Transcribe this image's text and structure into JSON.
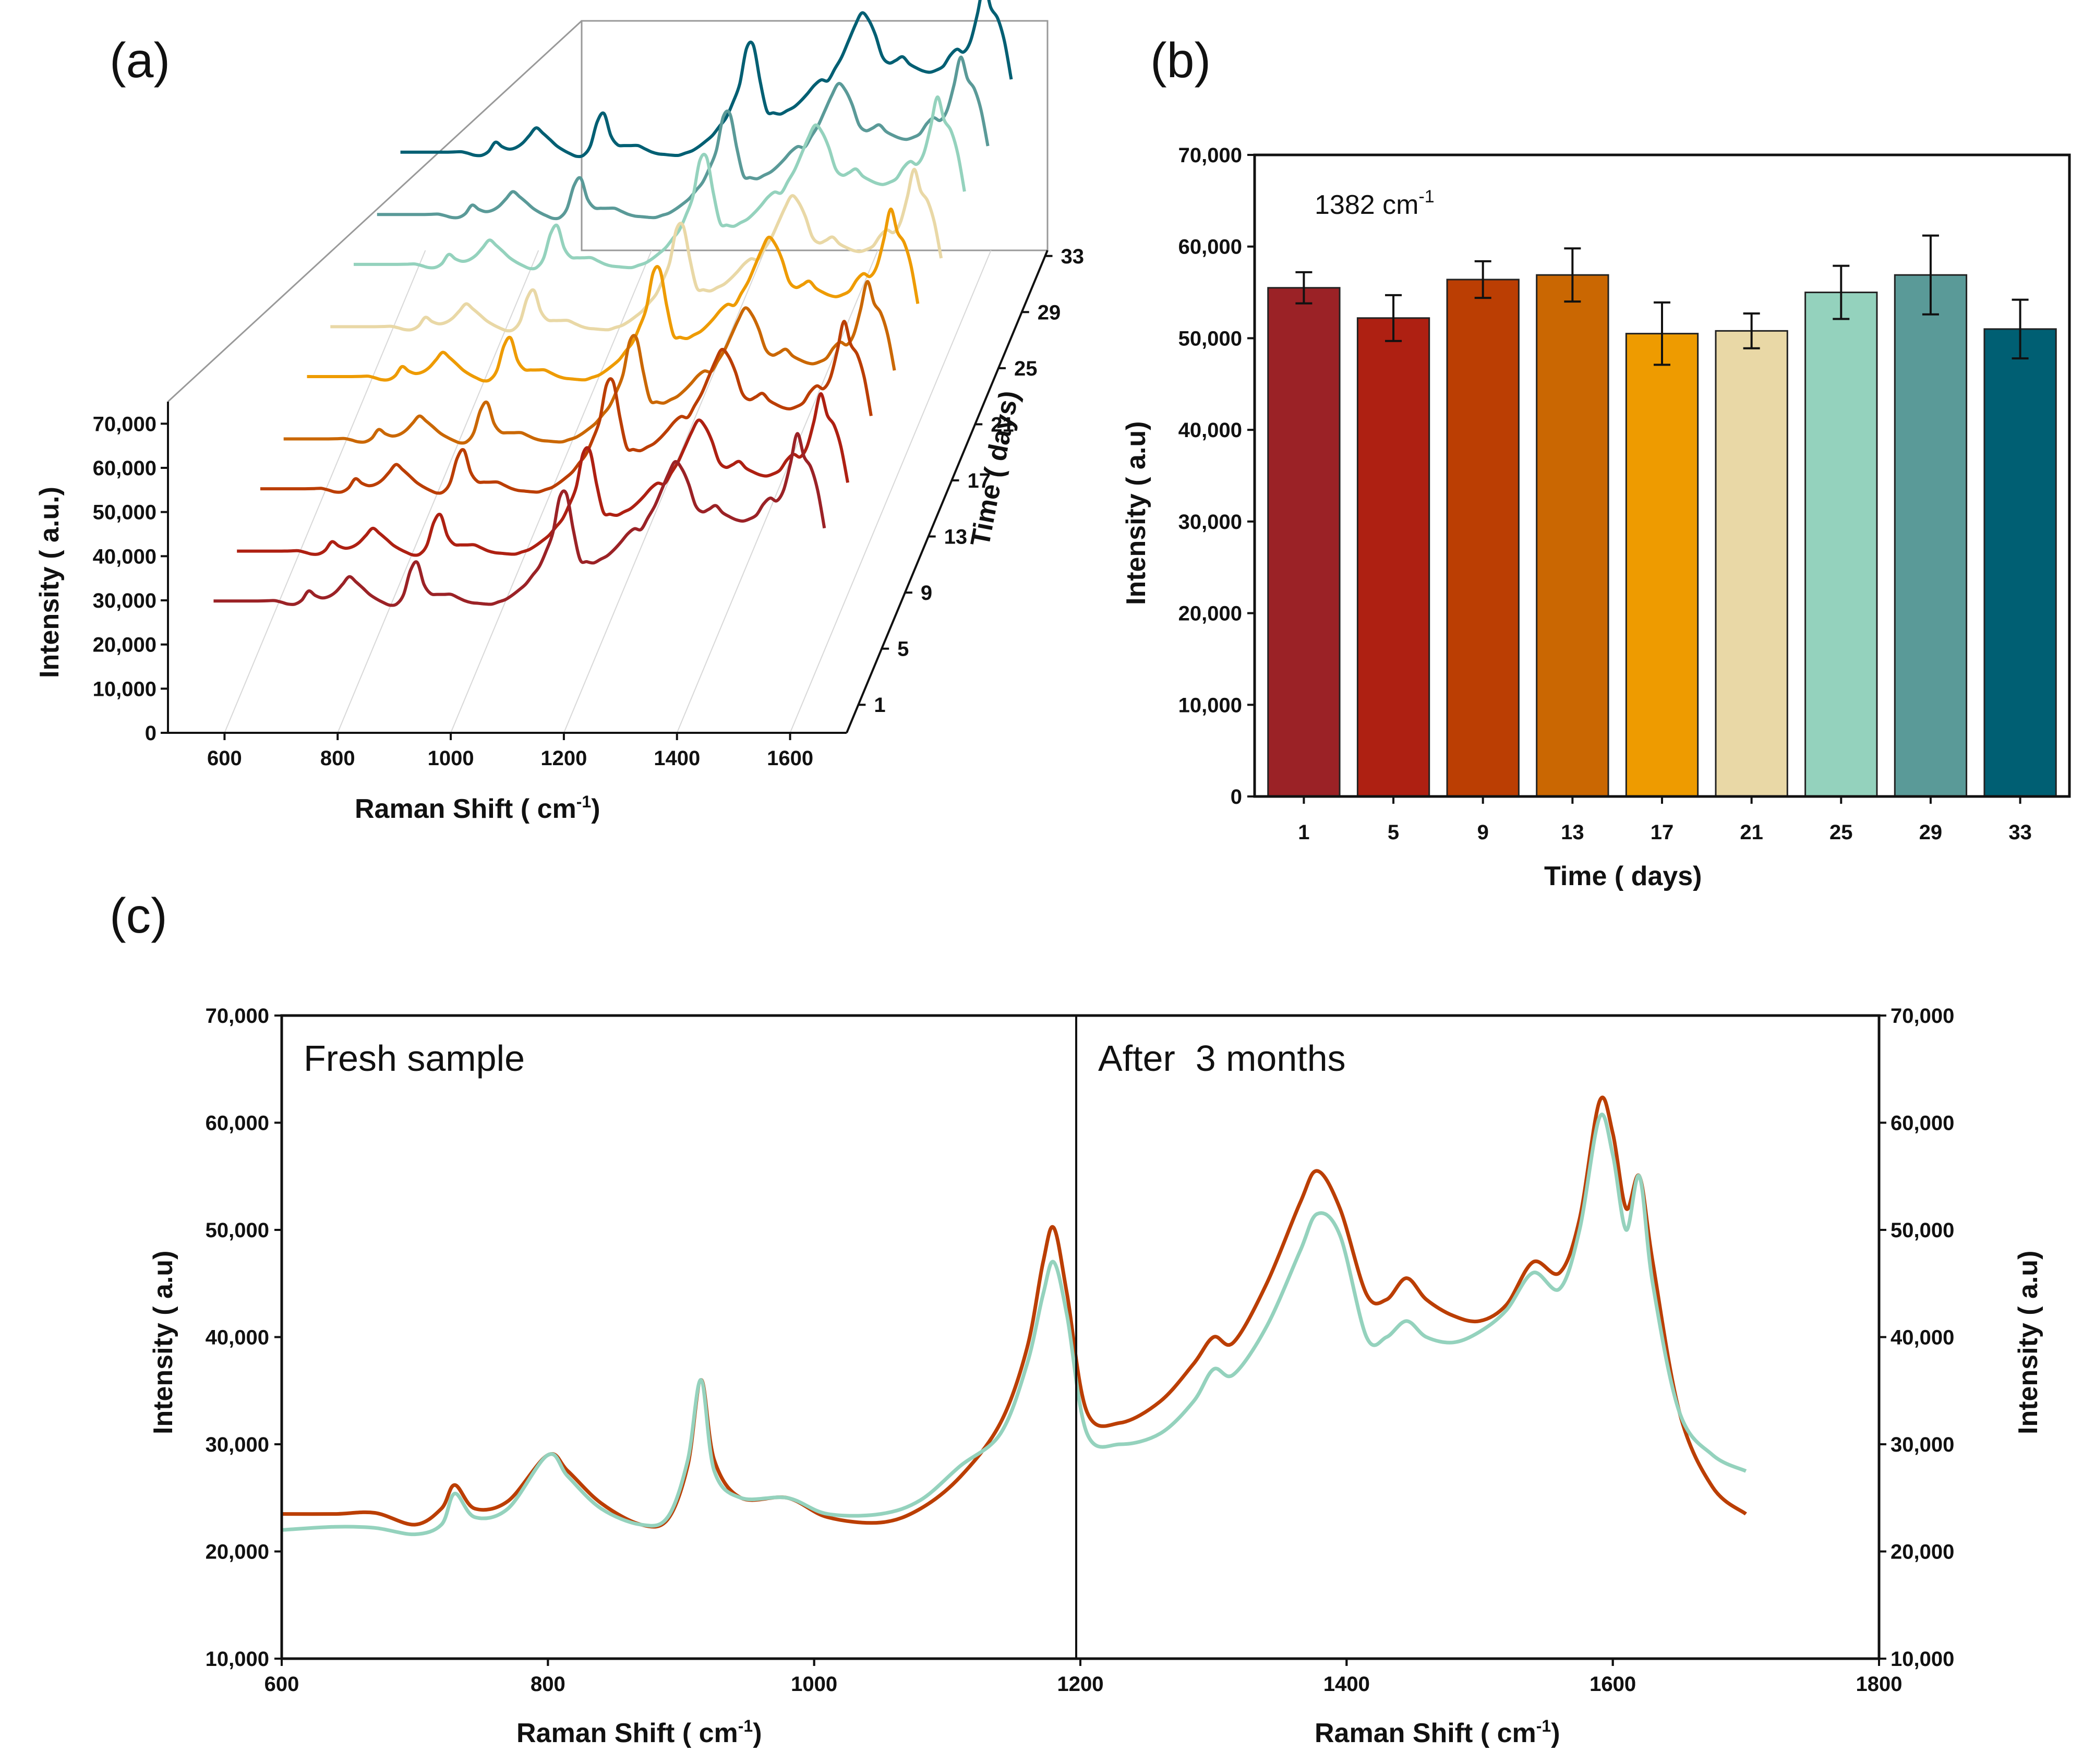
{
  "panels": {
    "a": "(a)",
    "b": "(b)",
    "c": "(c)"
  },
  "chart_data": [
    {
      "type": "line",
      "title": "",
      "xlabel": "Raman Shift ( cm",
      "xlabel_sup": "-1",
      "xlabel_end": ")",
      "ylabel": "Intensity ( a.u.)",
      "zlabel": "Time ( days)",
      "xlim": [
        500,
        1700
      ],
      "ylim": [
        0,
        75000
      ],
      "x_ticks": [
        "600",
        "800",
        "1000",
        "1200",
        "1400",
        "1600"
      ],
      "y_ticks": [
        "0",
        "10,000",
        "20,000",
        "30,000",
        "40,000",
        "50,000",
        "60,000",
        "70,000"
      ],
      "z_ticks": [
        "1",
        "5",
        "9",
        "13",
        "17",
        "21",
        "25",
        "29",
        "33"
      ],
      "series": [
        {
          "name": "1",
          "color": "#9B2226"
        },
        {
          "name": "5",
          "color": "#AE2012"
        },
        {
          "name": "9",
          "color": "#BB3E03"
        },
        {
          "name": "13",
          "color": "#CA6702"
        },
        {
          "name": "17",
          "color": "#EE9B00"
        },
        {
          "name": "21",
          "color": "#E9D8A6"
        },
        {
          "name": "25",
          "color": "#94D2BD"
        },
        {
          "name": "29",
          "color": "#5A9A98"
        },
        {
          "name": "33",
          "color": "#005F73"
        }
      ]
    },
    {
      "type": "bar",
      "annotation": "1382 cm",
      "annotation_sup": "-1",
      "xlabel": "Time ( days)",
      "ylabel": "Intensity ( a.u)",
      "ylim": [
        0,
        70000
      ],
      "y_ticks": [
        "0",
        "10,000",
        "20,000",
        "30,000",
        "40,000",
        "50,000",
        "60,000",
        "70,000"
      ],
      "categories": [
        "1",
        "5",
        "9",
        "13",
        "17",
        "21",
        "25",
        "29",
        "33"
      ],
      "values": [
        55500,
        52200,
        56400,
        56900,
        50500,
        50800,
        55000,
        56900,
        51000
      ],
      "errors": [
        1700,
        2500,
        2000,
        2900,
        3400,
        1900,
        2900,
        4300,
        3200
      ],
      "colors": [
        "#9B2226",
        "#AE2012",
        "#BB3E03",
        "#CA6702",
        "#EE9B00",
        "#E9D8A6",
        "#94D2BD",
        "#5A9A98",
        "#005F73"
      ]
    },
    {
      "type": "line",
      "xlabel_left": "Raman Shift ( cm",
      "xlabel_right": "Raman Shift ( cm",
      "xlabel_sup": "-1",
      "xlabel_end": ")",
      "ylabel_left": "Intensity ( a.u)",
      "ylabel_right": "Intensity ( a.u)",
      "ylim": [
        10000,
        70000
      ],
      "y_ticks": [
        "10,000",
        "20,000",
        "30,000",
        "40,000",
        "50,000",
        "60,000",
        "70,000"
      ],
      "left": {
        "label": "Fresh sample",
        "color": "#BB3E03",
        "xlim": [
          600,
          1800
        ],
        "x_ticks": [
          "600",
          "800",
          "1000",
          "1200",
          "1400",
          "1600"
        ]
      },
      "right": {
        "label": "After  3 months",
        "color": "#94D2BD",
        "xlim": [
          600,
          1800
        ],
        "x_ticks": [
          "800",
          "1000",
          "1200",
          "1400",
          "1600",
          "1800"
        ]
      },
      "spectrum": {
        "x": [
          600,
          640,
          670,
          700,
          720,
          730,
          745,
          770,
          800,
          815,
          840,
          870,
          890,
          905,
          915,
          925,
          945,
          980,
          1010,
          1050,
          1080,
          1110,
          1140,
          1160,
          1172,
          1180,
          1190,
          1205,
          1230,
          1260,
          1285,
          1300,
          1315,
          1340,
          1365,
          1378,
          1395,
          1415,
          1430,
          1445,
          1460,
          1480,
          1500,
          1520,
          1540,
          1560,
          1575,
          1590,
          1600,
          1610,
          1620,
          1630,
          1650,
          1675,
          1700
        ],
        "fresh": [
          23500,
          23500,
          23600,
          22500,
          24000,
          26200,
          24000,
          24700,
          29000,
          27500,
          24500,
          22500,
          23000,
          28000,
          36000,
          28500,
          25000,
          25000,
          23200,
          22700,
          24000,
          27000,
          32000,
          39000,
          47000,
          50200,
          44000,
          33000,
          32000,
          34000,
          37500,
          40000,
          39500,
          45000,
          52500,
          55500,
          52000,
          44000,
          43500,
          45500,
          43500,
          42000,
          41500,
          43000,
          47000,
          46000,
          51000,
          62000,
          59000,
          52000,
          55000,
          47000,
          33000,
          26000,
          23500
        ],
        "aged": [
          22000,
          22300,
          22200,
          21600,
          22500,
          25400,
          23200,
          24000,
          29000,
          27000,
          24000,
          22500,
          23200,
          28500,
          36000,
          27500,
          25000,
          25000,
          23500,
          23500,
          24800,
          28000,
          31000,
          37500,
          44000,
          47000,
          42000,
          31000,
          30000,
          31000,
          34000,
          37000,
          36500,
          41000,
          48000,
          51500,
          49500,
          40000,
          40000,
          41500,
          40000,
          39500,
          40500,
          42500,
          46000,
          44500,
          50000,
          60500,
          57000,
          50000,
          55000,
          45000,
          33000,
          29000,
          27500
        ]
      }
    }
  ]
}
